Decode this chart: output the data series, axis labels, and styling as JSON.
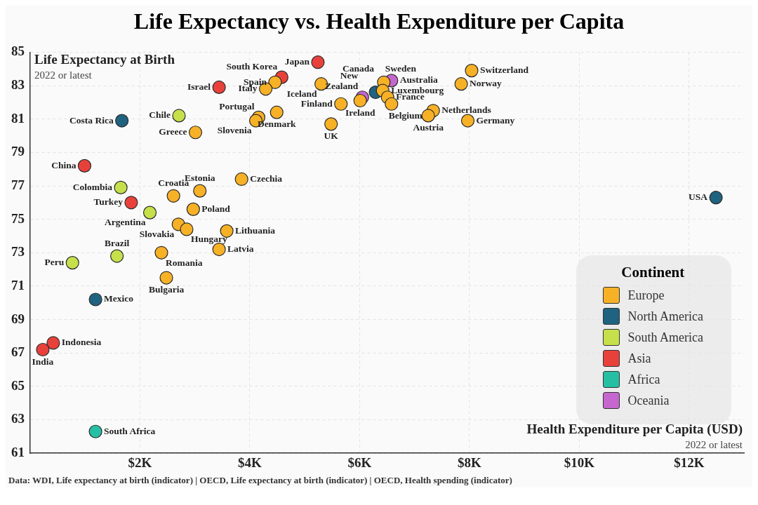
{
  "chart_data": {
    "type": "scatter",
    "title": "Life Expectancy vs. Health Expenditure per Capita",
    "xlabel": "Health Expenditure per Capita (USD)",
    "ylabel": "Life Expectancy at Birth",
    "legend_title": "Continent",
    "xlim": [
      0,
      13000
    ],
    "xticks": [
      {
        "value": 2000,
        "label": "$2K"
      },
      {
        "value": 4000,
        "label": "$4K"
      },
      {
        "value": 6000,
        "label": "$6K"
      },
      {
        "value": 8000,
        "label": "$8K"
      },
      {
        "value": 10000,
        "label": "$10K"
      },
      {
        "value": 12000,
        "label": "$12K"
      }
    ],
    "ylim": [
      61,
      85
    ],
    "yticks": [
      61,
      63,
      65,
      67,
      69,
      71,
      73,
      75,
      77,
      79,
      81,
      83,
      85
    ],
    "grid": true,
    "legend": "bottom right",
    "marker": "circle",
    "series": [
      {
        "name": "Europe",
        "color": "#f7b126",
        "x": [
          5300,
          8040,
          7850,
          6440,
          6420,
          6510,
          6580,
          6010,
          5660,
          4490,
          4160,
          4110,
          5480,
          7340,
          7250,
          7970,
          4460,
          4290,
          3010,
          2610,
          3090,
          3850,
          2970,
          2700,
          2850,
          3580,
          3440,
          2390,
          2480
        ],
        "values": [
          83.1,
          83.9,
          83.1,
          83.2,
          82.7,
          82.3,
          81.9,
          82.1,
          81.9,
          81.4,
          81.1,
          80.9,
          80.7,
          81.5,
          81.2,
          80.9,
          83.2,
          82.8,
          80.2,
          76.4,
          76.7,
          77.4,
          75.6,
          74.7,
          74.4,
          74.3,
          73.2,
          73.0,
          71.5
        ]
      },
      {
        "name": "North America",
        "color": "#1f6380",
        "x": [
          6290,
          1670,
          1190,
          12490
        ],
        "values": [
          82.6,
          80.9,
          70.2,
          76.3
        ]
      },
      {
        "name": "South America",
        "color": "#c6e04b",
        "x": [
          2710,
          1650,
          2180,
          1580,
          770
        ],
        "values": [
          81.2,
          76.9,
          75.4,
          72.8,
          72.4
        ]
      },
      {
        "name": "Asia",
        "color": "#e8413b",
        "x": [
          5240,
          4580,
          3440,
          990,
          1840,
          420,
          230
        ],
        "values": [
          84.4,
          83.5,
          82.9,
          78.2,
          76.0,
          67.6,
          67.2
        ]
      },
      {
        "name": "Africa",
        "color": "#27bfa4",
        "x": [
          1190
        ],
        "values": [
          62.3
        ]
      },
      {
        "name": "Oceania",
        "color": "#c567cf",
        "x": [
          6580,
          6050
        ],
        "values": [
          83.3,
          82.3
        ]
      }
    ],
    "annotations": [
      "2022 or latest",
      "2022 or latest",
      "Data: WDI, Life expectancy at birth (indicator) | OECD, Life expectancy at birth (indicator) | OECD, Health spending (indicator)",
      {
        "text": "Iceland",
        "x": 5300,
        "y": 83.1
      },
      {
        "text": "Switzerland",
        "x": 8040,
        "y": 83.9
      },
      {
        "text": "Norway",
        "x": 7850,
        "y": 83.1
      },
      {
        "text": "Sweden",
        "x": 6440,
        "y": 83.2
      },
      {
        "text": "Luxembourg",
        "x": 6420,
        "y": 82.7
      },
      {
        "text": "France",
        "x": 6510,
        "y": 82.3
      },
      {
        "text": "Belgium",
        "x": 6580,
        "y": 81.9
      },
      {
        "text": "Ireland",
        "x": 6010,
        "y": 82.1
      },
      {
        "text": "Finland",
        "x": 5660,
        "y": 81.9
      },
      {
        "text": "Denmark",
        "x": 4490,
        "y": 81.4
      },
      {
        "text": "Portugal",
        "x": 4160,
        "y": 81.1
      },
      {
        "text": "Slovenia",
        "x": 4110,
        "y": 80.9
      },
      {
        "text": "UK",
        "x": 5480,
        "y": 80.7
      },
      {
        "text": "Netherlands",
        "x": 7340,
        "y": 81.5
      },
      {
        "text": "Austria",
        "x": 7250,
        "y": 81.2
      },
      {
        "text": "Germany",
        "x": 7970,
        "y": 80.9
      },
      {
        "text": "Spain",
        "x": 4460,
        "y": 83.2
      },
      {
        "text": "Italy",
        "x": 4290,
        "y": 82.8
      },
      {
        "text": "Greece",
        "x": 3010,
        "y": 80.2
      },
      {
        "text": "Croatia",
        "x": 2610,
        "y": 76.4
      },
      {
        "text": "Estonia",
        "x": 3090,
        "y": 76.7
      },
      {
        "text": "Czechia",
        "x": 3850,
        "y": 77.4
      },
      {
        "text": "Poland",
        "x": 2970,
        "y": 75.6
      },
      {
        "text": "Slovakia",
        "x": 2700,
        "y": 74.7
      },
      {
        "text": "Hungary",
        "x": 2850,
        "y": 74.4
      },
      {
        "text": "Lithuania",
        "x": 3580,
        "y": 74.3
      },
      {
        "text": "Latvia",
        "x": 3440,
        "y": 73.2
      },
      {
        "text": "Romania",
        "x": 2390,
        "y": 73.0
      },
      {
        "text": "Bulgaria",
        "x": 2480,
        "y": 71.5
      },
      {
        "text": "Canada",
        "x": 6290,
        "y": 82.6
      },
      {
        "text": "Costa Rica",
        "x": 1670,
        "y": 80.9
      },
      {
        "text": "Mexico",
        "x": 1190,
        "y": 70.2
      },
      {
        "text": "USA",
        "x": 12490,
        "y": 76.3
      },
      {
        "text": "Chile",
        "x": 2710,
        "y": 81.2
      },
      {
        "text": "Colombia",
        "x": 1650,
        "y": 76.9
      },
      {
        "text": "Argentina",
        "x": 2180,
        "y": 75.4
      },
      {
        "text": "Brazil",
        "x": 1580,
        "y": 72.8
      },
      {
        "text": "Peru",
        "x": 770,
        "y": 72.4
      },
      {
        "text": "Japan",
        "x": 5240,
        "y": 84.4
      },
      {
        "text": "South Korea",
        "x": 4580,
        "y": 83.5
      },
      {
        "text": "Israel",
        "x": 3440,
        "y": 82.9
      },
      {
        "text": "China",
        "x": 990,
        "y": 78.2
      },
      {
        "text": "Turkey",
        "x": 1840,
        "y": 76.0
      },
      {
        "text": "Indonesia",
        "x": 420,
        "y": 67.6
      },
      {
        "text": "India",
        "x": 230,
        "y": 67.2
      },
      {
        "text": "South Africa",
        "x": 1190,
        "y": 62.3
      },
      {
        "text": "Australia",
        "x": 6580,
        "y": 83.3
      },
      {
        "text": "New Zealand",
        "x": 6050,
        "y": 82.3
      }
    ]
  }
}
